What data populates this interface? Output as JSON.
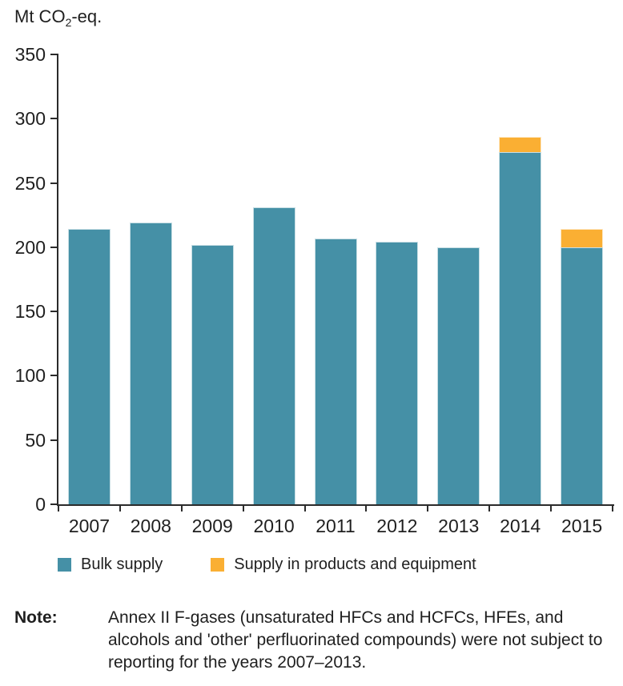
{
  "figure": {
    "unit_label": {
      "prefix": "Mt CO",
      "subscript": "2",
      "suffix": "-eq."
    }
  },
  "chart_data": {
    "type": "bar",
    "stacked": true,
    "title": "",
    "ylabel": "Mt CO₂-eq.",
    "xlabel": "",
    "ylim": [
      0,
      350
    ],
    "yticks": [
      0,
      50,
      100,
      150,
      200,
      250,
      300,
      350
    ],
    "grid": false,
    "legend_position": "bottom",
    "categories": [
      "2007",
      "2008",
      "2009",
      "2010",
      "2011",
      "2012",
      "2013",
      "2014",
      "2015"
    ],
    "series": [
      {
        "name": "Bulk supply",
        "color": "#4590A6",
        "values": [
          214,
          219,
          202,
          231,
          207,
          204,
          200,
          274,
          200
        ]
      },
      {
        "name": "Supply in products and equipment",
        "color": "#FAAF33",
        "values": [
          0,
          0,
          0,
          0,
          0,
          0,
          0,
          12,
          14
        ]
      }
    ]
  },
  "note": {
    "label": "Note:",
    "text": "Annex II F-gases (unsaturated HFCs and HCFCs, HFEs, and alcohols and 'other' perfluorinated compounds) were not subject to reporting for the years 2007–2013."
  }
}
